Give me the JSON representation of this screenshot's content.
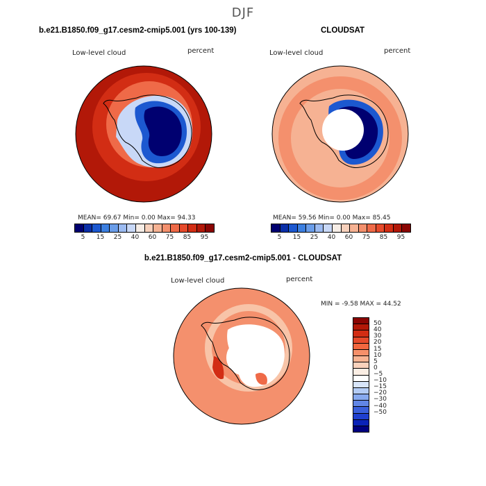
{
  "figure": {
    "season": "DJF",
    "diff_title": "b.e21.B1850.f09_g17.cesm2-cmip5.001 - CLOUDSAT"
  },
  "panels": [
    {
      "title": "b.e21.B1850.f09_g17.cesm2-cmip5.001 (yrs 100-139)",
      "variable": "Low-level cloud",
      "units": "percent",
      "stats": "MEAN=  69.67  Min=   0.00  Max=  94.33",
      "mean": 69.67,
      "min": 0.0,
      "max": 94.33
    },
    {
      "title": "CLOUDSAT",
      "variable": "Low-level cloud",
      "units": "percent",
      "stats": "MEAN=  59.56  Min=   0.00  Max=  85.45",
      "mean": 59.56,
      "min": 0.0,
      "max": 85.45
    },
    {
      "title": "b.e21.B1850.f09_g17.cesm2-cmip5.001 - CLOUDSAT",
      "variable": "Low-level cloud",
      "units": "percent",
      "stats": "MIN =   -9.58 MAX =  44.52",
      "min": -9.58,
      "max": 44.52
    }
  ],
  "colorbar_abs": {
    "colors": [
      "#000070",
      "#0a2fa8",
      "#1c58d0",
      "#3c7fe0",
      "#6a9de9",
      "#9cbbf1",
      "#c8d8f7",
      "#f6ede6",
      "#f7d0bb",
      "#f6b293",
      "#f4906d",
      "#ef6a48",
      "#e64a2b",
      "#d22d14",
      "#b21808",
      "#8a0503"
    ],
    "tick_labels": [
      "5",
      "15",
      "25",
      "40",
      "60",
      "75",
      "85",
      "95"
    ]
  },
  "colorbar_diff": {
    "colors": [
      "#8a0503",
      "#b21808",
      "#d22d14",
      "#e64a2b",
      "#f2673f",
      "#f6906a",
      "#f8b493",
      "#fad2bc",
      "#fbeee4",
      "#ffffff",
      "#d8e5fa",
      "#b3cbf5",
      "#87a9ef",
      "#6186e6",
      "#3a5fdb",
      "#1f3fcf",
      "#0a22b8",
      "#000080"
    ],
    "tick_labels": [
      "50",
      "40",
      "30",
      "20",
      "15",
      "10",
      "5",
      "0",
      "−5",
      "−10",
      "−15",
      "−20",
      "−30",
      "−40",
      "−50"
    ]
  },
  "map_colors": {
    "ocean_abs_outer": "#b21808",
    "ocean_abs_mid": "#d22d14",
    "ocean_abs_inner": "#ef6a48",
    "ocean_obs": "#f6b293",
    "ocean_obs_dark": "#f4906d",
    "antarctic_deep": "#000070",
    "antarctic_mid": "#1c58d0",
    "antarctic_light": "#c8d8f7",
    "ocean_diff": "#f4906d",
    "ocean_diff_light": "#f8c4a8",
    "missing": "#ffffff"
  }
}
